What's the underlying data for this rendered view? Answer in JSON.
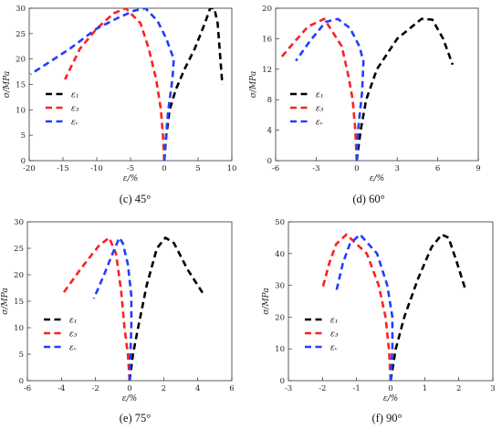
{
  "colors": {
    "eps1": "#000000",
    "eps3": "#ff1f1f",
    "epsv": "#1f3fff"
  },
  "legend": {
    "labels": [
      "ε₁",
      "ε₃",
      "εᵥ"
    ],
    "position": "center-left"
  },
  "chart_data": [
    {
      "type": "line",
      "caption": "(c) 45°",
      "xlabel": "ε/%",
      "ylabel": "σ/MPa",
      "xlim": [
        -20,
        10
      ],
      "ylim": [
        0,
        30
      ],
      "xticks": [
        -20,
        -15,
        -10,
        -5,
        0,
        5,
        10
      ],
      "yticks": [
        0,
        5,
        10,
        15,
        20,
        25,
        30
      ],
      "series": [
        {
          "name": "ε₁",
          "points": [
            [
              0,
              0
            ],
            [
              0.3,
              5
            ],
            [
              0.8,
              10
            ],
            [
              1.7,
              14
            ],
            [
              3,
              18
            ],
            [
              4.5,
              22
            ],
            [
              6,
              27
            ],
            [
              6.8,
              30
            ],
            [
              7.4,
              30
            ],
            [
              7.9,
              27
            ],
            [
              8.6,
              15
            ]
          ]
        },
        {
          "name": "ε₃",
          "points": [
            [
              0,
              0
            ],
            [
              -0.2,
              5
            ],
            [
              -0.5,
              10
            ],
            [
              -1.2,
              16
            ],
            [
              -2.3,
              22
            ],
            [
              -3.5,
              27
            ],
            [
              -5.7,
              30
            ],
            [
              -7.5,
              29
            ],
            [
              -10,
              26
            ],
            [
              -12.5,
              22
            ],
            [
              -14.7,
              16
            ]
          ]
        },
        {
          "name": "εᵥ",
          "points": [
            [
              0,
              0
            ],
            [
              0.2,
              4
            ],
            [
              0.6,
              10
            ],
            [
              1.2,
              16
            ],
            [
              1.4,
              20
            ],
            [
              0.3,
              24
            ],
            [
              -1,
              27.5
            ],
            [
              -2.8,
              30
            ],
            [
              -4.5,
              29.5
            ],
            [
              -7,
              28
            ],
            [
              -10,
              26
            ],
            [
              -14,
              22
            ],
            [
              -19.8,
              17
            ]
          ]
        }
      ]
    },
    {
      "type": "line",
      "caption": "(d) 60°",
      "xlabel": "ε/%",
      "ylabel": "σ/MPa",
      "xlim": [
        -6,
        9
      ],
      "ylim": [
        0,
        20
      ],
      "xticks": [
        -6,
        -3,
        0,
        3,
        6,
        9
      ],
      "yticks": [
        0,
        4,
        8,
        12,
        16,
        20
      ],
      "series": [
        {
          "name": "ε₁",
          "points": [
            [
              0,
              0
            ],
            [
              0.3,
              4
            ],
            [
              0.7,
              8
            ],
            [
              1.5,
              12
            ],
            [
              3,
              16
            ],
            [
              4.8,
              18.6
            ],
            [
              5.6,
              18.5
            ],
            [
              6.4,
              16
            ],
            [
              7.1,
              12.6
            ]
          ]
        },
        {
          "name": "ε₃",
          "points": [
            [
              0,
              0
            ],
            [
              -0.1,
              4
            ],
            [
              -0.3,
              8
            ],
            [
              -0.6,
              11
            ],
            [
              -1.1,
              15
            ],
            [
              -2.4,
              18.6
            ],
            [
              -3.6,
              17.6
            ],
            [
              -4.8,
              15.2
            ],
            [
              -5.7,
              13.3
            ]
          ]
        },
        {
          "name": "εᵥ",
          "points": [
            [
              0,
              0
            ],
            [
              0.1,
              4
            ],
            [
              0.4,
              9
            ],
            [
              0.5,
              13
            ],
            [
              0.2,
              15
            ],
            [
              -0.5,
              17.4
            ],
            [
              -1.4,
              18.6
            ],
            [
              -2.3,
              18.2
            ],
            [
              -3.5,
              15.6
            ],
            [
              -4.5,
              13.1
            ]
          ]
        }
      ]
    },
    {
      "type": "line",
      "caption": "(e) 75°",
      "xlabel": "ε/%",
      "ylabel": "σ/MPa",
      "xlim": [
        -6,
        6
      ],
      "ylim": [
        0,
        30
      ],
      "xticks": [
        -6,
        -4,
        -2,
        0,
        2,
        4,
        6
      ],
      "yticks": [
        0,
        5,
        10,
        15,
        20,
        25,
        30
      ],
      "series": [
        {
          "name": "ε₁",
          "points": [
            [
              0,
              0
            ],
            [
              0.2,
              5
            ],
            [
              0.5,
              10
            ],
            [
              1,
              18
            ],
            [
              1.6,
              25
            ],
            [
              2.1,
              27
            ],
            [
              2.6,
              26
            ],
            [
              3.4,
              21
            ],
            [
              4.3,
              16.5
            ]
          ]
        },
        {
          "name": "ε₃",
          "points": [
            [
              0,
              0
            ],
            [
              -0.1,
              5
            ],
            [
              -0.3,
              10
            ],
            [
              -0.5,
              17
            ],
            [
              -0.8,
              24
            ],
            [
              -1.2,
              27
            ],
            [
              -1.8,
              25.5
            ],
            [
              -2.9,
              21
            ],
            [
              -3.9,
              16.5
            ]
          ]
        },
        {
          "name": "εᵥ",
          "points": [
            [
              0,
              0
            ],
            [
              0.05,
              5
            ],
            [
              0.1,
              10
            ],
            [
              0.1,
              16
            ],
            [
              -0.1,
              22
            ],
            [
              -0.4,
              26
            ],
            [
              -0.6,
              27
            ],
            [
              -1,
              24
            ],
            [
              -1.5,
              20
            ],
            [
              -2.1,
              15.5
            ]
          ]
        }
      ]
    },
    {
      "type": "line",
      "caption": "(f) 90°",
      "xlabel": "ε/%",
      "ylabel": "σ/MPa",
      "xlim": [
        -3,
        3
      ],
      "ylim": [
        0,
        50
      ],
      "xticks": [
        -3,
        -2,
        -1,
        0,
        1,
        2,
        3
      ],
      "yticks": [
        0,
        10,
        20,
        30,
        40,
        50
      ],
      "series": [
        {
          "name": "ε₁",
          "points": [
            [
              0,
              0
            ],
            [
              0.15,
              10
            ],
            [
              0.4,
              20
            ],
            [
              0.8,
              32
            ],
            [
              1.2,
              42
            ],
            [
              1.5,
              46
            ],
            [
              1.7,
              45
            ],
            [
              1.95,
              37
            ],
            [
              2.2,
              28.5
            ]
          ]
        },
        {
          "name": "ε₃",
          "points": [
            [
              0,
              0
            ],
            [
              -0.05,
              10
            ],
            [
              -0.15,
              20
            ],
            [
              -0.35,
              30
            ],
            [
              -0.7,
              40
            ],
            [
              -1.3,
              46
            ],
            [
              -1.6,
              43
            ],
            [
              -1.8,
              37
            ],
            [
              -2,
              29
            ]
          ]
        },
        {
          "name": "εᵥ",
          "points": [
            [
              0,
              0
            ],
            [
              0.05,
              10
            ],
            [
              0.05,
              20
            ],
            [
              -0.1,
              30
            ],
            [
              -0.4,
              40
            ],
            [
              -0.9,
              46
            ],
            [
              -1.2,
              43
            ],
            [
              -1.4,
              37
            ],
            [
              -1.6,
              28
            ]
          ]
        }
      ]
    }
  ]
}
